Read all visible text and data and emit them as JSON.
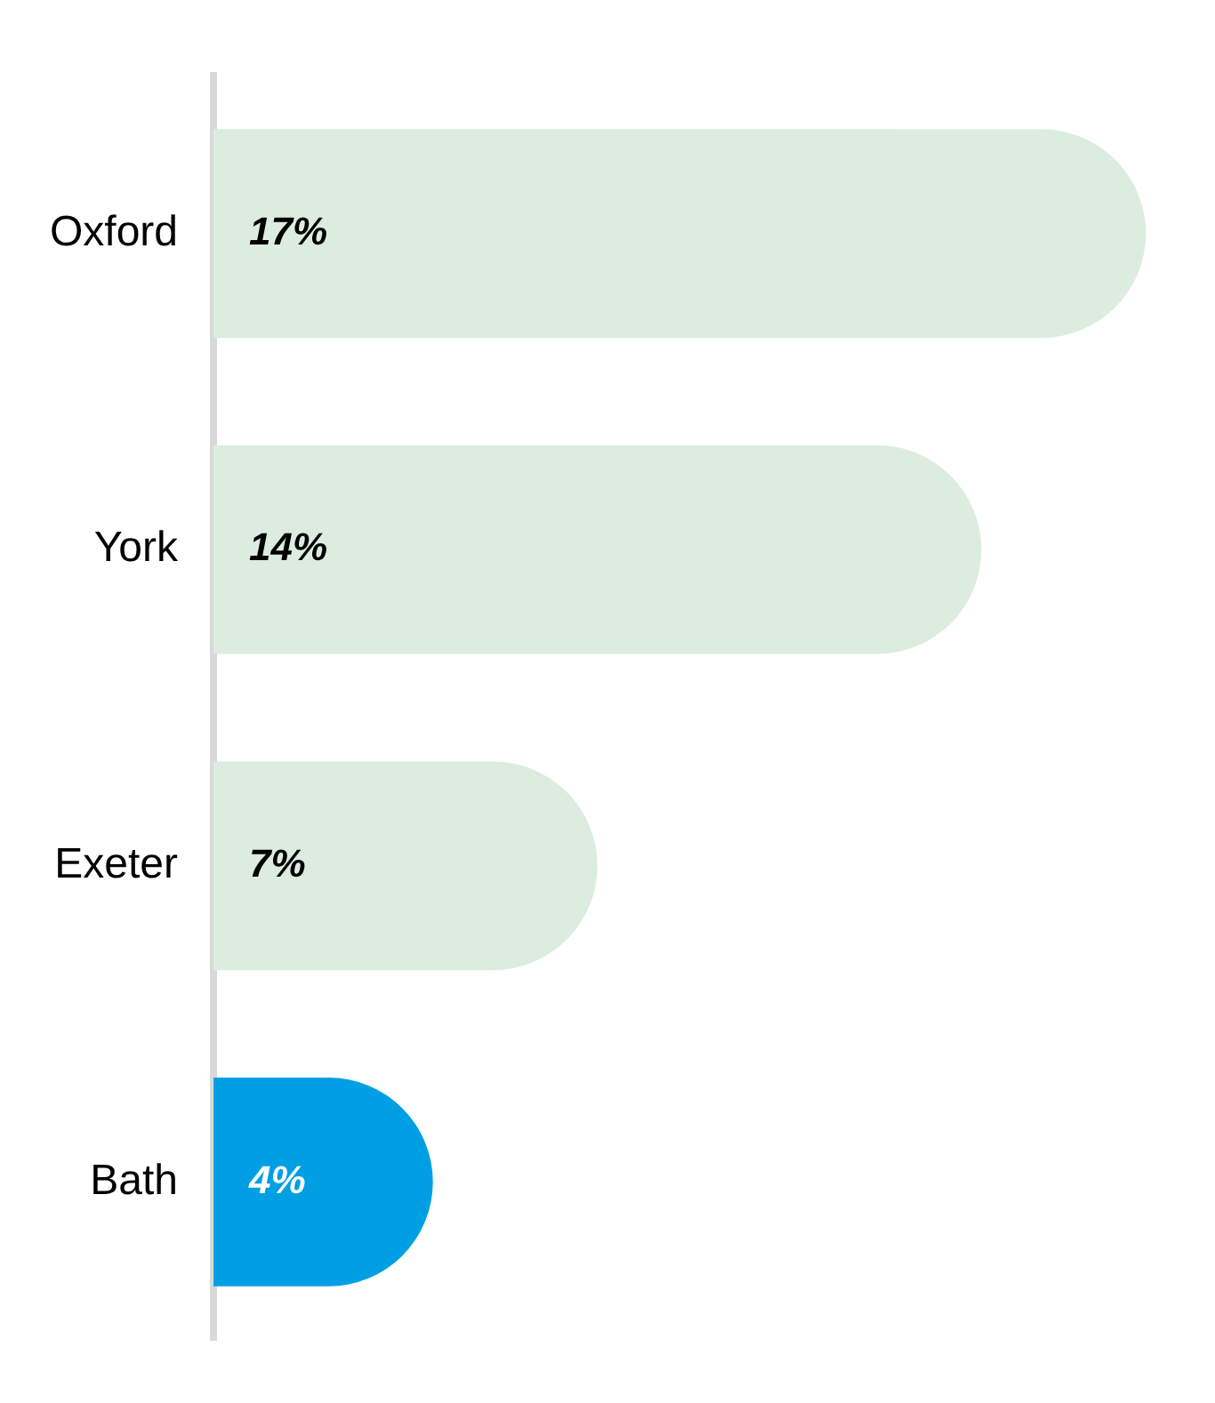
{
  "chart_data": {
    "type": "bar",
    "orientation": "horizontal",
    "categories": [
      "Oxford",
      "York",
      "Exeter",
      "Bath"
    ],
    "values": [
      17,
      14,
      7,
      4
    ],
    "colors": [
      "#dcede0",
      "#dcede0",
      "#dcede0",
      "#009fe3"
    ],
    "value_labels": [
      "17%",
      "14%",
      "7%",
      "4%"
    ],
    "tick_labels": "y"
  }
}
